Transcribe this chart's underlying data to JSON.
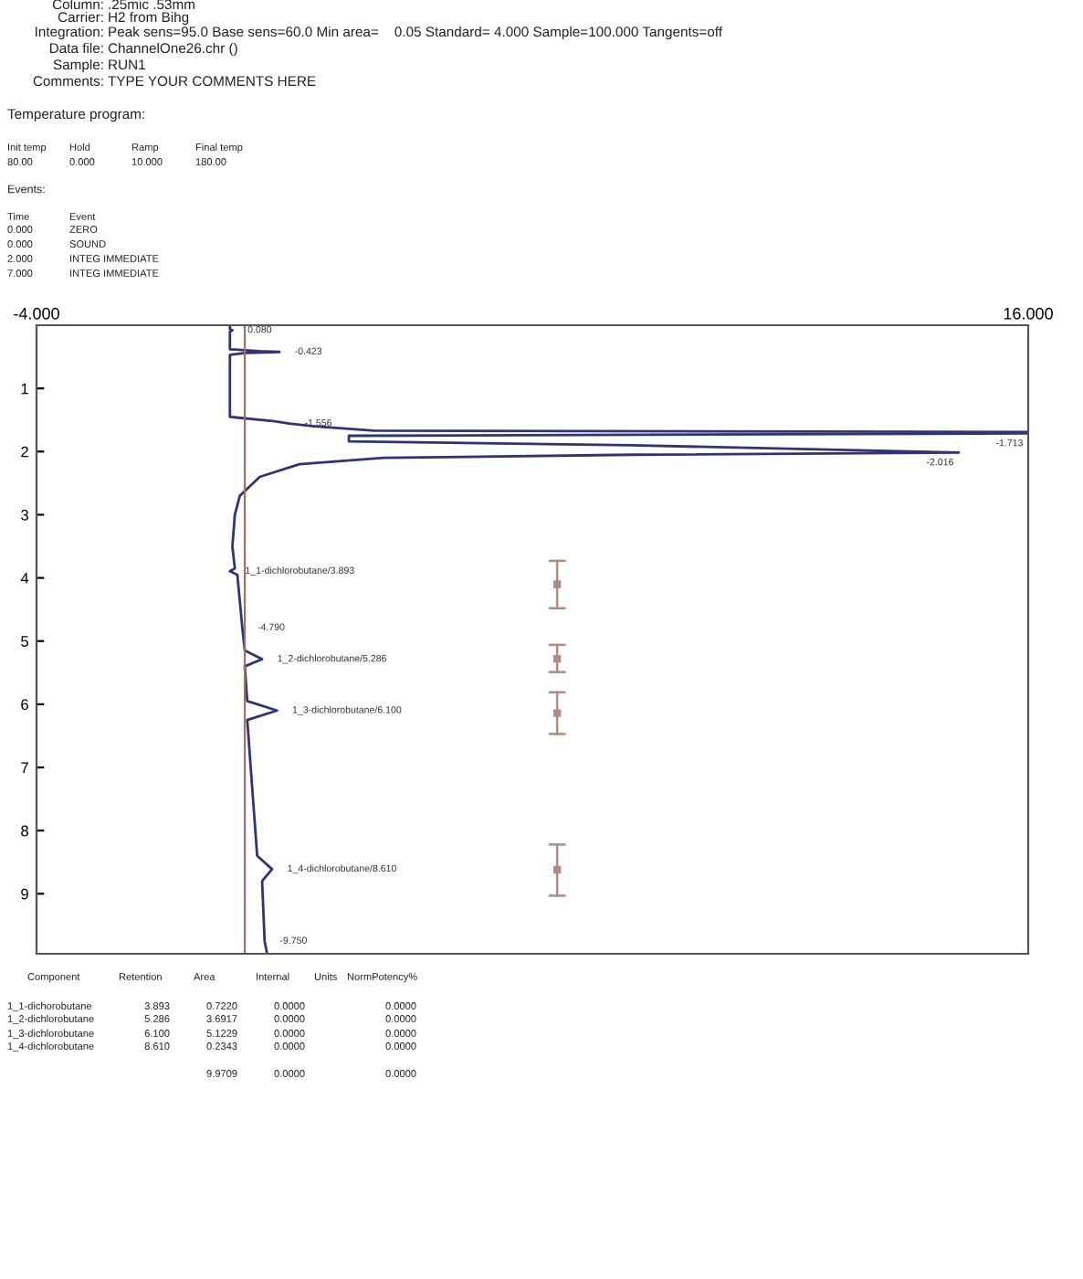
{
  "chart_data": {
    "type": "line",
    "orientation": "horizontal",
    "xlim": [
      -4,
      16
    ],
    "xticks": [
      {
        "value": -4,
        "label": "-4.000"
      },
      {
        "value": 16,
        "label": "16.000"
      }
    ],
    "ylim": [
      9.95,
      0
    ],
    "yticks": [
      1,
      2,
      3,
      4,
      5,
      6,
      7,
      8,
      9
    ],
    "grid": false,
    "marker": "none",
    "line_style": "solid",
    "series": [
      {
        "color": "#2e3475",
        "x": [
          0,
          0.06,
          0.08,
          0.1,
          0.38,
          0.41,
          0.423,
          0.44,
          0.47,
          1.45,
          1.52,
          1.556,
          1.6,
          1.67,
          1.69,
          1.713,
          1.75,
          1.84,
          1.9,
          2.016,
          2.05,
          2.1,
          2.2,
          2.4,
          2.7,
          3.0,
          3.5,
          3.85,
          3.893,
          3.95,
          4.79,
          5.15,
          5.286,
          5.4,
          5.95,
          6.1,
          6.25,
          8.4,
          8.61,
          8.8,
          9.75,
          9.95
        ],
        "values": [
          -0.1,
          -0.1,
          -0.05,
          -0.1,
          -0.1,
          0.5,
          0.9,
          0.2,
          -0.1,
          -0.1,
          0.8,
          1.1,
          1.6,
          2.8,
          16,
          16,
          2.3,
          2.3,
          8,
          14.6,
          8,
          3,
          1.3,
          0.5,
          0.1,
          0,
          -0.05,
          0.0,
          -0.1,
          0.05,
          0.15,
          0.2,
          0.55,
          0.2,
          0.25,
          0.85,
          0.25,
          0.45,
          0.75,
          0.55,
          0.6,
          0.65
        ]
      },
      {
        "type": "scatter",
        "marker": "square",
        "color": "#b08a84",
        "x": [
          4.1,
          5.28,
          6.14,
          8.62
        ],
        "values": [
          6.5,
          6.5,
          6.5,
          6.5
        ],
        "xerrors": [
          [
            3.73,
            4.48
          ],
          [
            5.06,
            5.49
          ],
          [
            5.81,
            6.47
          ],
          [
            8.22,
            9.03
          ]
        ]
      }
    ],
    "ref_lines": [
      {
        "axis": "x",
        "value": 0.2,
        "color": "#a07060"
      }
    ],
    "annotations": [
      "Column:\t.25mic .53mm",
      "Carrier:\tH2 from Bihg",
      "Integration:\tPeak sens=95.0 Base sens=60.0 Min area=    0.05 Standard= 4.000 Sample=100.000 Tangents=off",
      "Data file:\tChannelOne26.chr ()",
      "Sample:\tRUN1",
      "Comments:\tTYPE YOUR COMMENTS HERE",
      "Temperature program:",
      "Init temp\tHold\tRamp\tFinal temp",
      "80.00\t0.000\t10.000\t180.00",
      "Events:",
      "Time\tEvent",
      "0.000\tZERO",
      "0.000\tSOUND",
      "2.000\tINTEG IMMEDIATE",
      "7.000\tINTEG IMMEDIATE",
      "Component\tRetention\tArea\tInternal\tUnits\tNormPotency%",
      "1_1-dichorobutane\t3.893\t0.7220\t0.0000\t\t0.0000",
      "1_2-dichlorobutane\t5.286\t3.6917\t0.0000\t\t0.0000",
      "1_3-dichlorobutane\t6.100\t5.1229\t0.0000\t\t0.0000",
      "1_4-dichlorobutane\t8.610\t0.2343\t0.0000\t\t0.0000",
      "\t\t9.9709\t0.0000\t\t0.0000",
      {
        "text": "0.080",
        "x": -0.05,
        "y": 0.08
      },
      {
        "text": "-0.423",
        "x": 0.9,
        "y": 0.423
      },
      {
        "text": "-1.556",
        "x": 1.1,
        "y": 1.556
      },
      {
        "text": "-1.713",
        "x": 16,
        "y": 1.713
      },
      {
        "text": "-2.016",
        "x": 14.6,
        "y": 2.016
      },
      {
        "text": "1_1-dichlorobutane/3.893",
        "x": -0.1,
        "y": 3.893
      },
      {
        "text": "-4.790",
        "x": 0.15,
        "y": 4.79
      },
      {
        "text": "1_2-dichlorobutane/5.286",
        "x": 0.55,
        "y": 5.286
      },
      {
        "text": "1_3-dichlorobutane/6.100",
        "x": 0.85,
        "y": 6.1
      },
      {
        "text": "1_4-dichlorobutane/8.610",
        "x": 0.75,
        "y": 8.61
      },
      {
        "text": "-9.750",
        "x": 0.6,
        "y": 9.75
      }
    ]
  }
}
